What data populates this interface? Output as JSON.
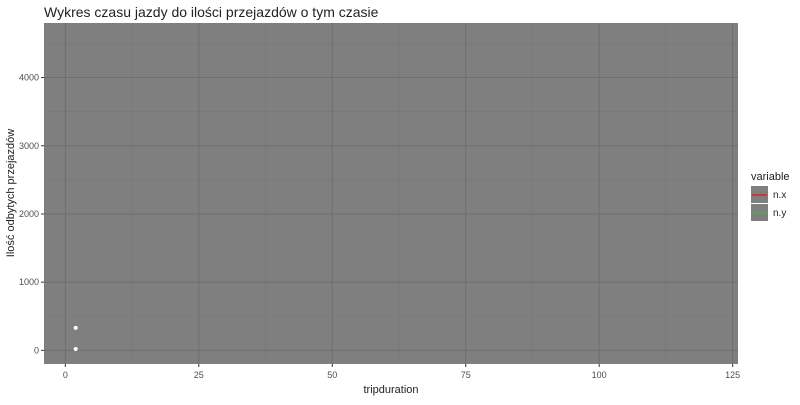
{
  "chart_data": {
    "type": "line",
    "title": "Wykres czasu jazdy do ilości przejazdów o tym czasie",
    "xlabel": "tripduration",
    "ylabel": "Ilość odbytych przejazdów",
    "xlim": [
      -4,
      126
    ],
    "ylim": [
      -200,
      4800
    ],
    "x_ticks": [
      0,
      25,
      50,
      75,
      100,
      125
    ],
    "x_tick_labels": [
      "0",
      "25",
      "50",
      "75",
      "100",
      "125"
    ],
    "y_ticks": [
      0,
      1000,
      2000,
      3000,
      4000
    ],
    "y_tick_labels": [
      "0",
      "1000",
      "2000",
      "3000",
      "4000"
    ],
    "grid": true,
    "legend_position": "right",
    "legend_title": "variable",
    "series": [
      {
        "name": "n.x",
        "color": "#e41a1c",
        "x": [
          1
        ],
        "y": [
          330
        ]
      },
      {
        "name": "n.y",
        "color": "#4daf4a",
        "x": [
          1
        ],
        "y": [
          20
        ]
      }
    ],
    "colors": {
      "panel_bg": "#7f7f7f",
      "grid_major": "#6e6e6e",
      "grid_minor": "#777777",
      "point": "#ffffff",
      "legend_key_bg": "#7f7f7f"
    }
  }
}
